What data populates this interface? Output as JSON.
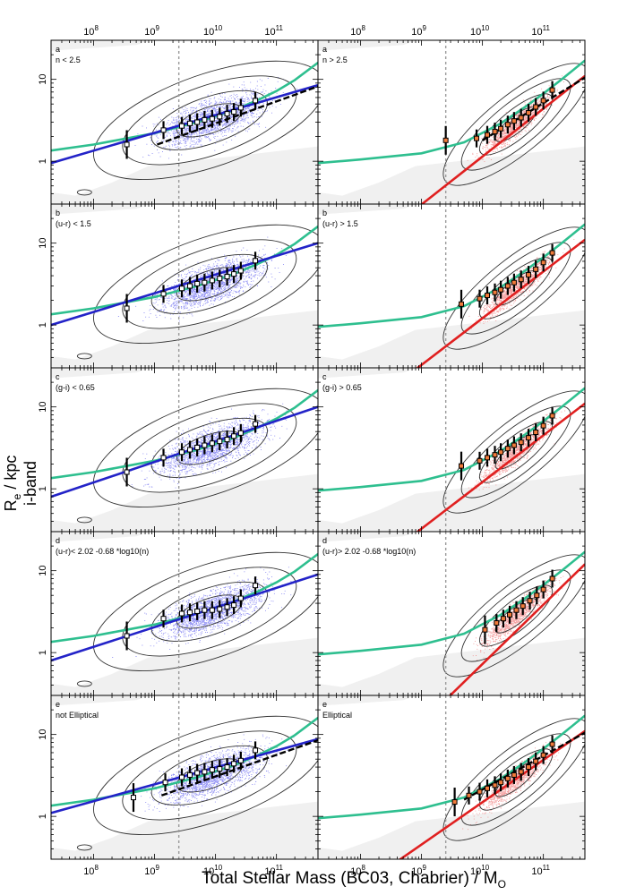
{
  "figure": {
    "xlabel": "Total Stellar Mass (BC03, Chabrier) / M",
    "xlabel_sub": "O",
    "ylabel_band": "i-band",
    "ylabel_main": "R",
    "ylabel_sub": "e",
    "ylabel_unit": " / kpc"
  },
  "chart_data": {
    "type": "scatter",
    "x_scale": "log",
    "y_scale": "log",
    "xlim": [
      20000000.0,
      480000000000.0
    ],
    "ylim": [
      0.3,
      30
    ],
    "x_ticks": [
      {
        "value": 100000000.0,
        "base": "10",
        "exp": "8"
      },
      {
        "value": 1000000000.0,
        "base": "10",
        "exp": "9"
      },
      {
        "value": 10000000000.0,
        "base": "10",
        "exp": "10"
      },
      {
        "value": 100000000000.0,
        "base": "10",
        "exp": "11"
      }
    ],
    "y_ticks": [
      {
        "value": 1,
        "label": "1"
      },
      {
        "value": 10,
        "label": "10"
      }
    ],
    "mass_limit": 2500000000.0,
    "colors": {
      "disk": "#2323c8",
      "spheroid": "#e02020",
      "reference": "#2ebf8f",
      "contour": "#333333",
      "points_disk": "#6b6bf0",
      "points_spheroid": "#f08080",
      "excluded_region": "#f0f0f0"
    },
    "panels": [
      {
        "row": 0,
        "col": 0,
        "letter": "a",
        "criterion": "n < 2.5",
        "group": "disk",
        "binned_x": [
          350000000.0,
          1400000000.0,
          2800000000.0,
          3800000000.0,
          5000000000.0,
          6600000000.0,
          8800000000.0,
          11700000000.0,
          15500000000.0,
          20000000000.0,
          26000000000.0,
          45000000000.0
        ],
        "binned_y": [
          1.6,
          2.4,
          2.7,
          2.9,
          3.0,
          3.2,
          3.3,
          3.5,
          3.8,
          4.0,
          4.5,
          5.5
        ],
        "fit": {
          "x": [
            20000000.0,
            480000000000.0
          ],
          "y": [
            0.95,
            8.5
          ]
        },
        "dashed_fit": {
          "x": [
            1100000000.0,
            480000000000.0
          ],
          "y": [
            1.6,
            8.2
          ]
        }
      },
      {
        "row": 0,
        "col": 1,
        "letter": "a",
        "criterion": "n > 2.5",
        "group": "spheroid",
        "binned_x": [
          2500000000.0,
          8000000000.0,
          12000000000.0,
          16000000000.0,
          20000000000.0,
          26000000000.0,
          33000000000.0,
          43000000000.0,
          57000000000.0,
          75000000000.0,
          100000000000.0,
          140000000000.0
        ],
        "binned_y": [
          1.8,
          1.9,
          2.1,
          2.3,
          2.5,
          2.8,
          3.1,
          3.4,
          3.9,
          4.6,
          5.5,
          7.4
        ],
        "fit": {
          "x": [
            20000000.0,
            480000000000.0
          ],
          "y": [
            0.03,
            11.0
          ]
        },
        "dashed_fit": {
          "x": [
            10000000000.0,
            480000000000.0
          ],
          "y": [
            1.8,
            10.5
          ]
        }
      },
      {
        "row": 1,
        "col": 0,
        "letter": "b",
        "criterion": "(u-r) < 1.5",
        "group": "disk",
        "binned_x": [
          350000000.0,
          1400000000.0,
          2800000000.0,
          3800000000.0,
          5000000000.0,
          6600000000.0,
          8800000000.0,
          11700000000.0,
          15500000000.0,
          20000000000.0,
          26000000000.0,
          45000000000.0
        ],
        "binned_y": [
          1.6,
          2.4,
          2.8,
          3.0,
          3.2,
          3.3,
          3.5,
          3.7,
          3.9,
          4.2,
          4.6,
          6.1
        ],
        "fit": {
          "x": [
            20000000.0,
            480000000000.0
          ],
          "y": [
            1.0,
            10.0
          ]
        },
        "dashed_fit": null
      },
      {
        "row": 1,
        "col": 1,
        "letter": "b",
        "criterion": "(u-r) > 1.5",
        "group": "spheroid",
        "binned_x": [
          4500000000.0,
          9000000000.0,
          12000000000.0,
          16000000000.0,
          20000000000.0,
          26000000000.0,
          33000000000.0,
          43000000000.0,
          57000000000.0,
          75000000000.0,
          100000000000.0,
          140000000000.0
        ],
        "binned_y": [
          1.8,
          2.1,
          2.3,
          2.5,
          2.7,
          3.0,
          3.3,
          3.6,
          4.1,
          4.8,
          5.8,
          7.6
        ],
        "fit": {
          "x": [
            20000000.0,
            480000000000.0
          ],
          "y": [
            0.035,
            11.0
          ]
        },
        "dashed_fit": null
      },
      {
        "row": 2,
        "col": 0,
        "letter": "c",
        "criterion": "(g-i) < 0.65",
        "group": "disk",
        "binned_x": [
          350000000.0,
          1400000000.0,
          2800000000.0,
          3800000000.0,
          5000000000.0,
          6600000000.0,
          8800000000.0,
          11700000000.0,
          15500000000.0,
          20000000000.0,
          26000000000.0,
          45000000000.0
        ],
        "binned_y": [
          1.6,
          2.4,
          2.8,
          3.0,
          3.2,
          3.4,
          3.6,
          3.8,
          4.0,
          4.4,
          4.8,
          6.2
        ],
        "fit": {
          "x": [
            20000000.0,
            480000000000.0
          ],
          "y": [
            0.8,
            10.0
          ]
        },
        "dashed_fit": null
      },
      {
        "row": 2,
        "col": 1,
        "letter": "c",
        "criterion": "(g-i) > 0.65",
        "group": "spheroid",
        "binned_x": [
          4500000000.0,
          9000000000.0,
          12000000000.0,
          16000000000.0,
          20000000000.0,
          26000000000.0,
          33000000000.0,
          43000000000.0,
          57000000000.0,
          75000000000.0,
          100000000000.0,
          140000000000.0
        ],
        "binned_y": [
          1.9,
          2.2,
          2.4,
          2.6,
          2.8,
          3.1,
          3.4,
          3.7,
          4.2,
          4.9,
          5.9,
          7.8
        ],
        "fit": {
          "x": [
            20000000.0,
            480000000000.0
          ],
          "y": [
            0.035,
            11.0
          ]
        },
        "dashed_fit": null
      },
      {
        "row": 3,
        "col": 0,
        "letter": "d",
        "criterion": "(u-r)< 2.02 -0.68 *log10(n)",
        "group": "disk",
        "binned_x": [
          350000000.0,
          1400000000.0,
          2800000000.0,
          3800000000.0,
          5000000000.0,
          6600000000.0,
          8800000000.0,
          11700000000.0,
          15500000000.0,
          20000000000.0,
          26000000000.0,
          45000000000.0
        ],
        "binned_y": [
          1.6,
          2.6,
          3.0,
          3.1,
          3.2,
          3.3,
          3.3,
          3.4,
          3.6,
          3.8,
          4.6,
          6.6
        ],
        "fit": {
          "x": [
            20000000.0,
            480000000000.0
          ],
          "y": [
            0.8,
            9.0
          ]
        },
        "dashed_fit": null
      },
      {
        "row": 3,
        "col": 1,
        "letter": "d",
        "criterion": "(u-r)> 2.02 -0.68 *log10(n)",
        "group": "spheroid",
        "binned_x": [
          11000000000.0,
          17000000000.0,
          22000000000.0,
          28000000000.0,
          36000000000.0,
          46000000000.0,
          60000000000.0,
          78000000000.0,
          100000000000.0,
          140000000000.0
        ],
        "binned_y": [
          1.9,
          2.3,
          2.6,
          2.9,
          3.3,
          3.7,
          4.3,
          5.0,
          5.9,
          8.0
        ],
        "fit": {
          "x": [
            20000000.0,
            480000000000.0
          ],
          "y": [
            0.008,
            12.0
          ]
        },
        "dashed_fit": null
      },
      {
        "row": 4,
        "col": 0,
        "letter": "e",
        "criterion": "not Elliptical",
        "group": "disk",
        "binned_x": [
          450000000.0,
          1500000000.0,
          2800000000.0,
          3800000000.0,
          5000000000.0,
          6600000000.0,
          8800000000.0,
          11700000000.0,
          15500000000.0,
          20000000000.0,
          26000000000.0,
          45000000000.0
        ],
        "binned_y": [
          1.7,
          2.6,
          3.0,
          3.2,
          3.4,
          3.5,
          3.7,
          3.8,
          4.0,
          4.4,
          4.8,
          6.4
        ],
        "fit": {
          "x": [
            20000000.0,
            480000000000.0
          ],
          "y": [
            1.1,
            8.8
          ]
        },
        "dashed_fit": {
          "x": [
            1300000000.0,
            480000000000.0
          ],
          "y": [
            1.8,
            8.5
          ]
        }
      },
      {
        "row": 4,
        "col": 1,
        "letter": "e",
        "criterion": "Elliptical",
        "group": "spheroid",
        "binned_x": [
          3500000000.0,
          6000000000.0,
          9000000000.0,
          12000000000.0,
          16000000000.0,
          20000000000.0,
          26000000000.0,
          33000000000.0,
          43000000000.0,
          57000000000.0,
          75000000000.0,
          100000000000.0,
          140000000000.0
        ],
        "binned_y": [
          1.5,
          1.8,
          2.0,
          2.2,
          2.4,
          2.6,
          2.9,
          3.2,
          3.5,
          4.0,
          4.7,
          5.6,
          7.6
        ],
        "fit": {
          "x": [
            20000000.0,
            480000000000.0
          ],
          "y": [
            0.06,
            11.0
          ]
        },
        "dashed_fit": {
          "x": [
            5000000000.0,
            480000000000.0
          ],
          "y": [
            1.6,
            10.5
          ]
        }
      }
    ],
    "reference_curves": {
      "disk": {
        "x": [
          20000000.0,
          100000000.0,
          1000000000.0,
          5000000000.0,
          20000000000.0,
          50000000000.0,
          100000000000.0,
          200000000000.0,
          480000000000.0
        ],
        "y": [
          1.35,
          1.6,
          2.2,
          3.0,
          4.2,
          5.6,
          7.2,
          9.8,
          16.0
        ]
      },
      "spheroid": {
        "x": [
          20000000.0,
          100000000.0,
          1000000000.0,
          5000000000.0,
          20000000000.0,
          50000000000.0,
          100000000000.0,
          200000000000.0,
          480000000000.0
        ],
        "y": [
          0.95,
          1.05,
          1.25,
          1.7,
          2.9,
          4.6,
          6.7,
          10.0,
          17.0
        ]
      }
    }
  }
}
